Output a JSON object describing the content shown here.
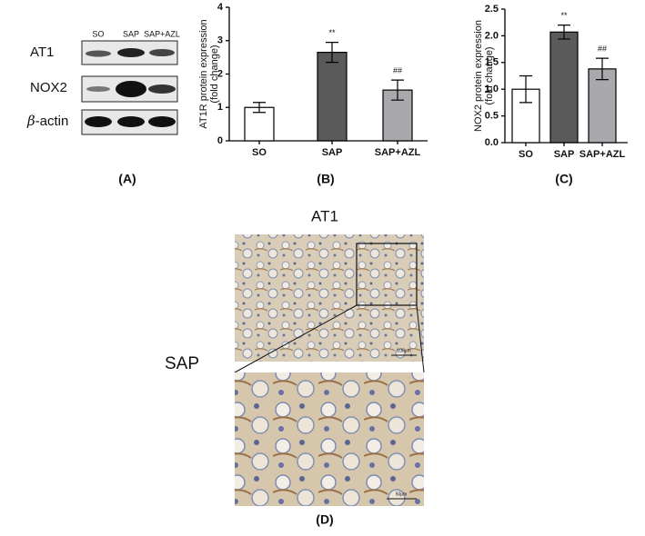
{
  "chart_data": [
    {
      "type": "bar",
      "panel": "(B)",
      "ylabel": [
        "AT1R protein expression",
        "(fold change)"
      ],
      "categories": [
        "SO",
        "SAP",
        "SAP+AZL"
      ],
      "values": [
        1.0,
        2.65,
        1.52
      ],
      "errors": [
        0.15,
        0.3,
        0.3
      ],
      "annotations": [
        null,
        "**",
        "##"
      ],
      "colors": [
        "#ffffff",
        "#5a5a5a",
        "#a9a9ad"
      ],
      "ylim": [
        0,
        4
      ],
      "yticks": [
        0,
        1,
        2,
        3,
        4
      ]
    },
    {
      "type": "bar",
      "panel": "(C)",
      "ylabel": [
        "NOX2 protein expression",
        "(fold change)"
      ],
      "categories": [
        "SO",
        "SAP",
        "SAP+AZL"
      ],
      "values": [
        1.0,
        2.07,
        1.38
      ],
      "errors": [
        0.25,
        0.13,
        0.2
      ],
      "annotations": [
        null,
        "**",
        "##"
      ],
      "colors": [
        "#ffffff",
        "#5a5a5a",
        "#a9a9ad"
      ],
      "ylim": [
        0,
        2.5
      ],
      "yticks": [
        {
          "value": 0,
          "label": "0.0"
        },
        0.5,
        {
          "value": 1,
          "label": "1.0"
        },
        1.5,
        {
          "value": 2,
          "label": "2.0"
        },
        2.5
      ]
    }
  ],
  "blot": {
    "panel": "(A)",
    "lanes": [
      "SO",
      "SAP",
      "SAP+AZL"
    ],
    "rows": [
      "AT1",
      "NOX2"
    ],
    "beta": "β",
    "actin": "-actin"
  },
  "histology": {
    "panel": "(D)",
    "title": "AT1",
    "group": "SAP",
    "scale_top": "100μm",
    "scale_bottom": "50μm"
  }
}
